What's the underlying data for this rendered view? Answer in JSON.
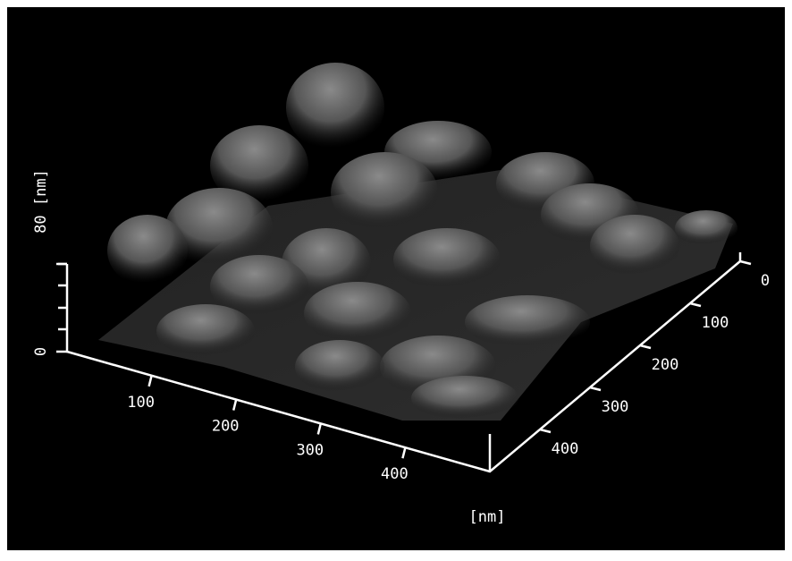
{
  "chart_data": {
    "type": "surface",
    "xlim": [
      0,
      500
    ],
    "xticks": [
      100,
      200,
      300,
      400
    ],
    "ylim": [
      0,
      500
    ],
    "yticks": [
      0,
      100,
      200,
      300,
      400
    ],
    "zlim": [
      0,
      80
    ],
    "zticks": [
      0,
      {
        "value": 80,
        "label": "80 [nm]"
      }
    ],
    "unit_label": "[nm]"
  }
}
